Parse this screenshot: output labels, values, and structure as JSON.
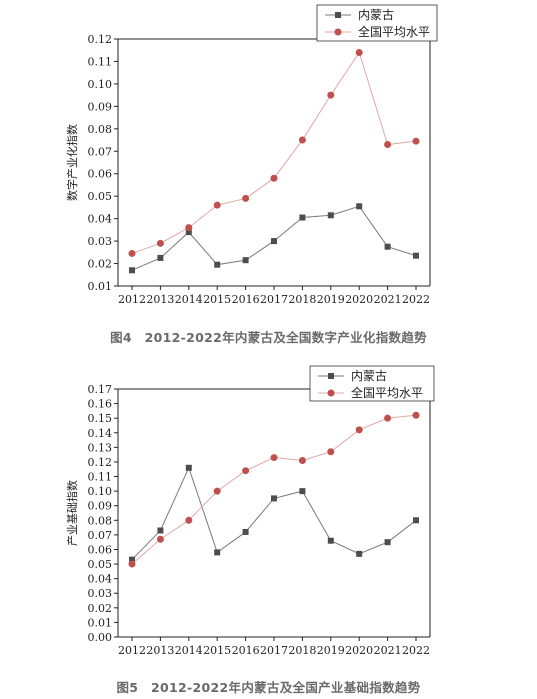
{
  "chart_data": [
    {
      "type": "line",
      "title": "",
      "xlabel": "",
      "ylabel": "数字产业化指数",
      "categories": [
        "2012",
        "2013",
        "2014",
        "2015",
        "2016",
        "2017",
        "2018",
        "2019",
        "2020",
        "2021",
        "2022"
      ],
      "ylim": [
        0.01,
        0.12
      ],
      "yticks": [
        "0.01",
        "0.02",
        "0.03",
        "0.04",
        "0.05",
        "0.06",
        "0.07",
        "0.08",
        "0.09",
        "0.10",
        "0.11",
        "0.12"
      ],
      "legend_position": "top-right",
      "series": [
        {
          "name": "内蒙古",
          "marker": "square",
          "color": "#4d4d4d",
          "values": [
            0.017,
            0.0225,
            0.034,
            0.0195,
            0.0215,
            0.03,
            0.0405,
            0.0415,
            0.0455,
            0.0275,
            0.0235
          ]
        },
        {
          "name": "全国平均水平",
          "marker": "circle",
          "color": "#c0504d",
          "values": [
            0.0245,
            0.029,
            0.036,
            0.046,
            0.049,
            0.058,
            0.075,
            0.095,
            0.114,
            0.073,
            0.0745
          ]
        }
      ],
      "caption": "图4　2012-2022年内蒙古及全国数字产业化指数趋势"
    },
    {
      "type": "line",
      "title": "",
      "xlabel": "",
      "ylabel": "产业基础指数",
      "categories": [
        "2012",
        "2013",
        "2014",
        "2015",
        "2016",
        "2017",
        "2018",
        "2019",
        "2020",
        "2021",
        "2022"
      ],
      "ylim": [
        0.0,
        0.17
      ],
      "yticks": [
        "0.00",
        "0.01",
        "0.02",
        "0.03",
        "0.04",
        "0.05",
        "0.06",
        "0.07",
        "0.08",
        "0.09",
        "0.10",
        "0.11",
        "0.12",
        "0.13",
        "0.14",
        "0.15",
        "0.16",
        "0.17"
      ],
      "legend_position": "top-right",
      "series": [
        {
          "name": "内蒙古",
          "marker": "square",
          "color": "#4d4d4d",
          "values": [
            0.053,
            0.073,
            0.116,
            0.058,
            0.072,
            0.095,
            0.1,
            0.066,
            0.057,
            0.065,
            0.08
          ]
        },
        {
          "name": "全国平均水平",
          "marker": "circle",
          "color": "#c0504d",
          "values": [
            0.05,
            0.067,
            0.08,
            0.1,
            0.114,
            0.123,
            0.121,
            0.127,
            0.142,
            0.15,
            0.152
          ]
        }
      ],
      "caption": "图5　2012-2022年内蒙古及全国产业基础指数趋势"
    }
  ]
}
